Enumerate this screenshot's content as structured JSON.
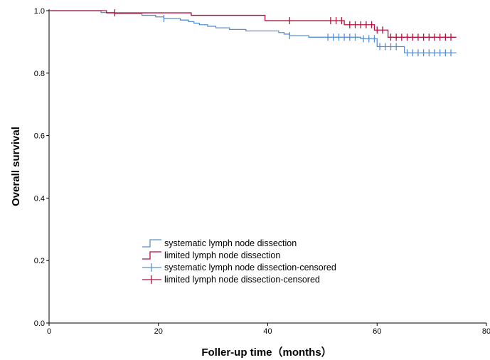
{
  "chart_data": {
    "type": "line",
    "title": "",
    "xlabel": "Foller-up time（months）",
    "ylabel": "Overall survival",
    "xlim": [
      0,
      80
    ],
    "ylim": [
      0.0,
      1.0
    ],
    "xticks": [
      "0",
      "20",
      "40",
      "60",
      "80"
    ],
    "yticks": [
      "0.0",
      "0.2",
      "0.4",
      "0.6",
      "0.8",
      "1.0"
    ],
    "grid": false,
    "legend_position": "lower-left",
    "legend": [
      {
        "label": "systematic lymph node dissection",
        "series": "systematic",
        "kind": "line"
      },
      {
        "label": "limited lymph node dissection",
        "series": "limited",
        "kind": "line"
      },
      {
        "label": "systematic lymph node dissection-censored",
        "series": "systematic",
        "kind": "censor"
      },
      {
        "label": "limited lymph node dissection-censored",
        "series": "limited",
        "kind": "censor"
      }
    ],
    "series": [
      {
        "key": "systematic",
        "name": "systematic lymph node dissection",
        "color": "#5b8fd1",
        "steps": [
          [
            0,
            1.0
          ],
          [
            9.5,
            0.994
          ],
          [
            12,
            0.99
          ],
          [
            17,
            0.985
          ],
          [
            19.5,
            0.98
          ],
          [
            21,
            0.975
          ],
          [
            24,
            0.97
          ],
          [
            25.5,
            0.965
          ],
          [
            26.5,
            0.96
          ],
          [
            27.5,
            0.955
          ],
          [
            29,
            0.95
          ],
          [
            30.5,
            0.945
          ],
          [
            33,
            0.94
          ],
          [
            36,
            0.935
          ],
          [
            42,
            0.93
          ],
          [
            43,
            0.925
          ],
          [
            44,
            0.92
          ],
          [
            47.5,
            0.915
          ],
          [
            57,
            0.91
          ],
          [
            60,
            0.885
          ],
          [
            65,
            0.865
          ],
          [
            74.5,
            0.865
          ]
        ],
        "censored": [
          [
            21,
            0.975
          ],
          [
            44,
            0.92
          ],
          [
            51,
            0.915
          ],
          [
            52,
            0.915
          ],
          [
            53,
            0.915
          ],
          [
            54,
            0.915
          ],
          [
            55,
            0.915
          ],
          [
            56,
            0.915
          ],
          [
            57.5,
            0.91
          ],
          [
            58.5,
            0.91
          ],
          [
            59.5,
            0.91
          ],
          [
            60.5,
            0.885
          ],
          [
            61.5,
            0.885
          ],
          [
            62.5,
            0.885
          ],
          [
            63.5,
            0.885
          ],
          [
            65.5,
            0.865
          ],
          [
            66.5,
            0.865
          ],
          [
            67.5,
            0.865
          ],
          [
            68.5,
            0.865
          ],
          [
            69.5,
            0.865
          ],
          [
            70.5,
            0.865
          ],
          [
            71.5,
            0.865
          ],
          [
            72.5,
            0.865
          ],
          [
            73.5,
            0.865
          ]
        ]
      },
      {
        "key": "limited",
        "name": "limited lymph node dissection",
        "color": "#b0123b",
        "steps": [
          [
            0,
            1.0
          ],
          [
            10.5,
            0.993
          ],
          [
            26,
            0.985
          ],
          [
            39.5,
            0.968
          ],
          [
            54,
            0.955
          ],
          [
            59.5,
            0.938
          ],
          [
            62,
            0.915
          ],
          [
            74.5,
            0.915
          ]
        ],
        "censored": [
          [
            12,
            0.993
          ],
          [
            44,
            0.968
          ],
          [
            51.5,
            0.968
          ],
          [
            52.5,
            0.968
          ],
          [
            53.5,
            0.968
          ],
          [
            55,
            0.955
          ],
          [
            56,
            0.955
          ],
          [
            57,
            0.955
          ],
          [
            58,
            0.955
          ],
          [
            59,
            0.955
          ],
          [
            60,
            0.938
          ],
          [
            61,
            0.938
          ],
          [
            62.5,
            0.915
          ],
          [
            63.5,
            0.915
          ],
          [
            64.5,
            0.915
          ],
          [
            65.5,
            0.915
          ],
          [
            66.5,
            0.915
          ],
          [
            67.5,
            0.915
          ],
          [
            68.5,
            0.915
          ],
          [
            69.5,
            0.915
          ],
          [
            70.5,
            0.915
          ],
          [
            71.5,
            0.915
          ],
          [
            72.5,
            0.915
          ],
          [
            73.5,
            0.915
          ]
        ]
      }
    ]
  }
}
